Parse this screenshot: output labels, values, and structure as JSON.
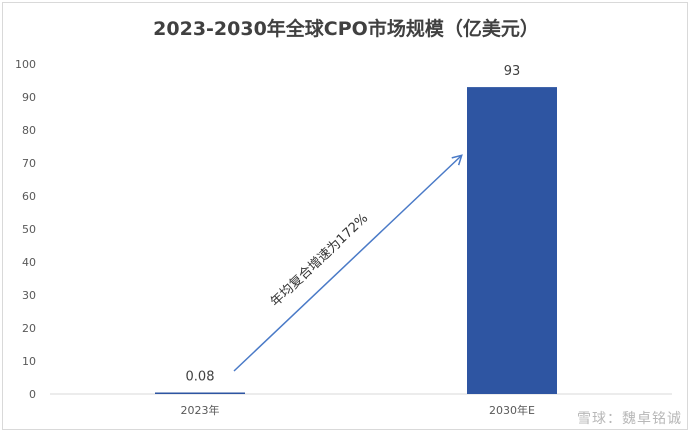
{
  "chart_data": {
    "type": "bar",
    "title": "2023-2030年全球CPO市场规模（亿美元）",
    "categories": [
      "2023年",
      "2030年E"
    ],
    "values": [
      0.08,
      93
    ],
    "data_labels": [
      "0.08",
      "93"
    ],
    "yticks": [
      "0",
      "10",
      "20",
      "30",
      "40",
      "50",
      "60",
      "70",
      "80",
      "90",
      "100"
    ],
    "ylim": [
      0,
      100
    ],
    "grid": false,
    "bar_color": "#2e55a2",
    "annotation": "年均复合增速为172%",
    "annotation_color": "#4a7ac7"
  },
  "watermark": "雪球：魏卓铭诚"
}
